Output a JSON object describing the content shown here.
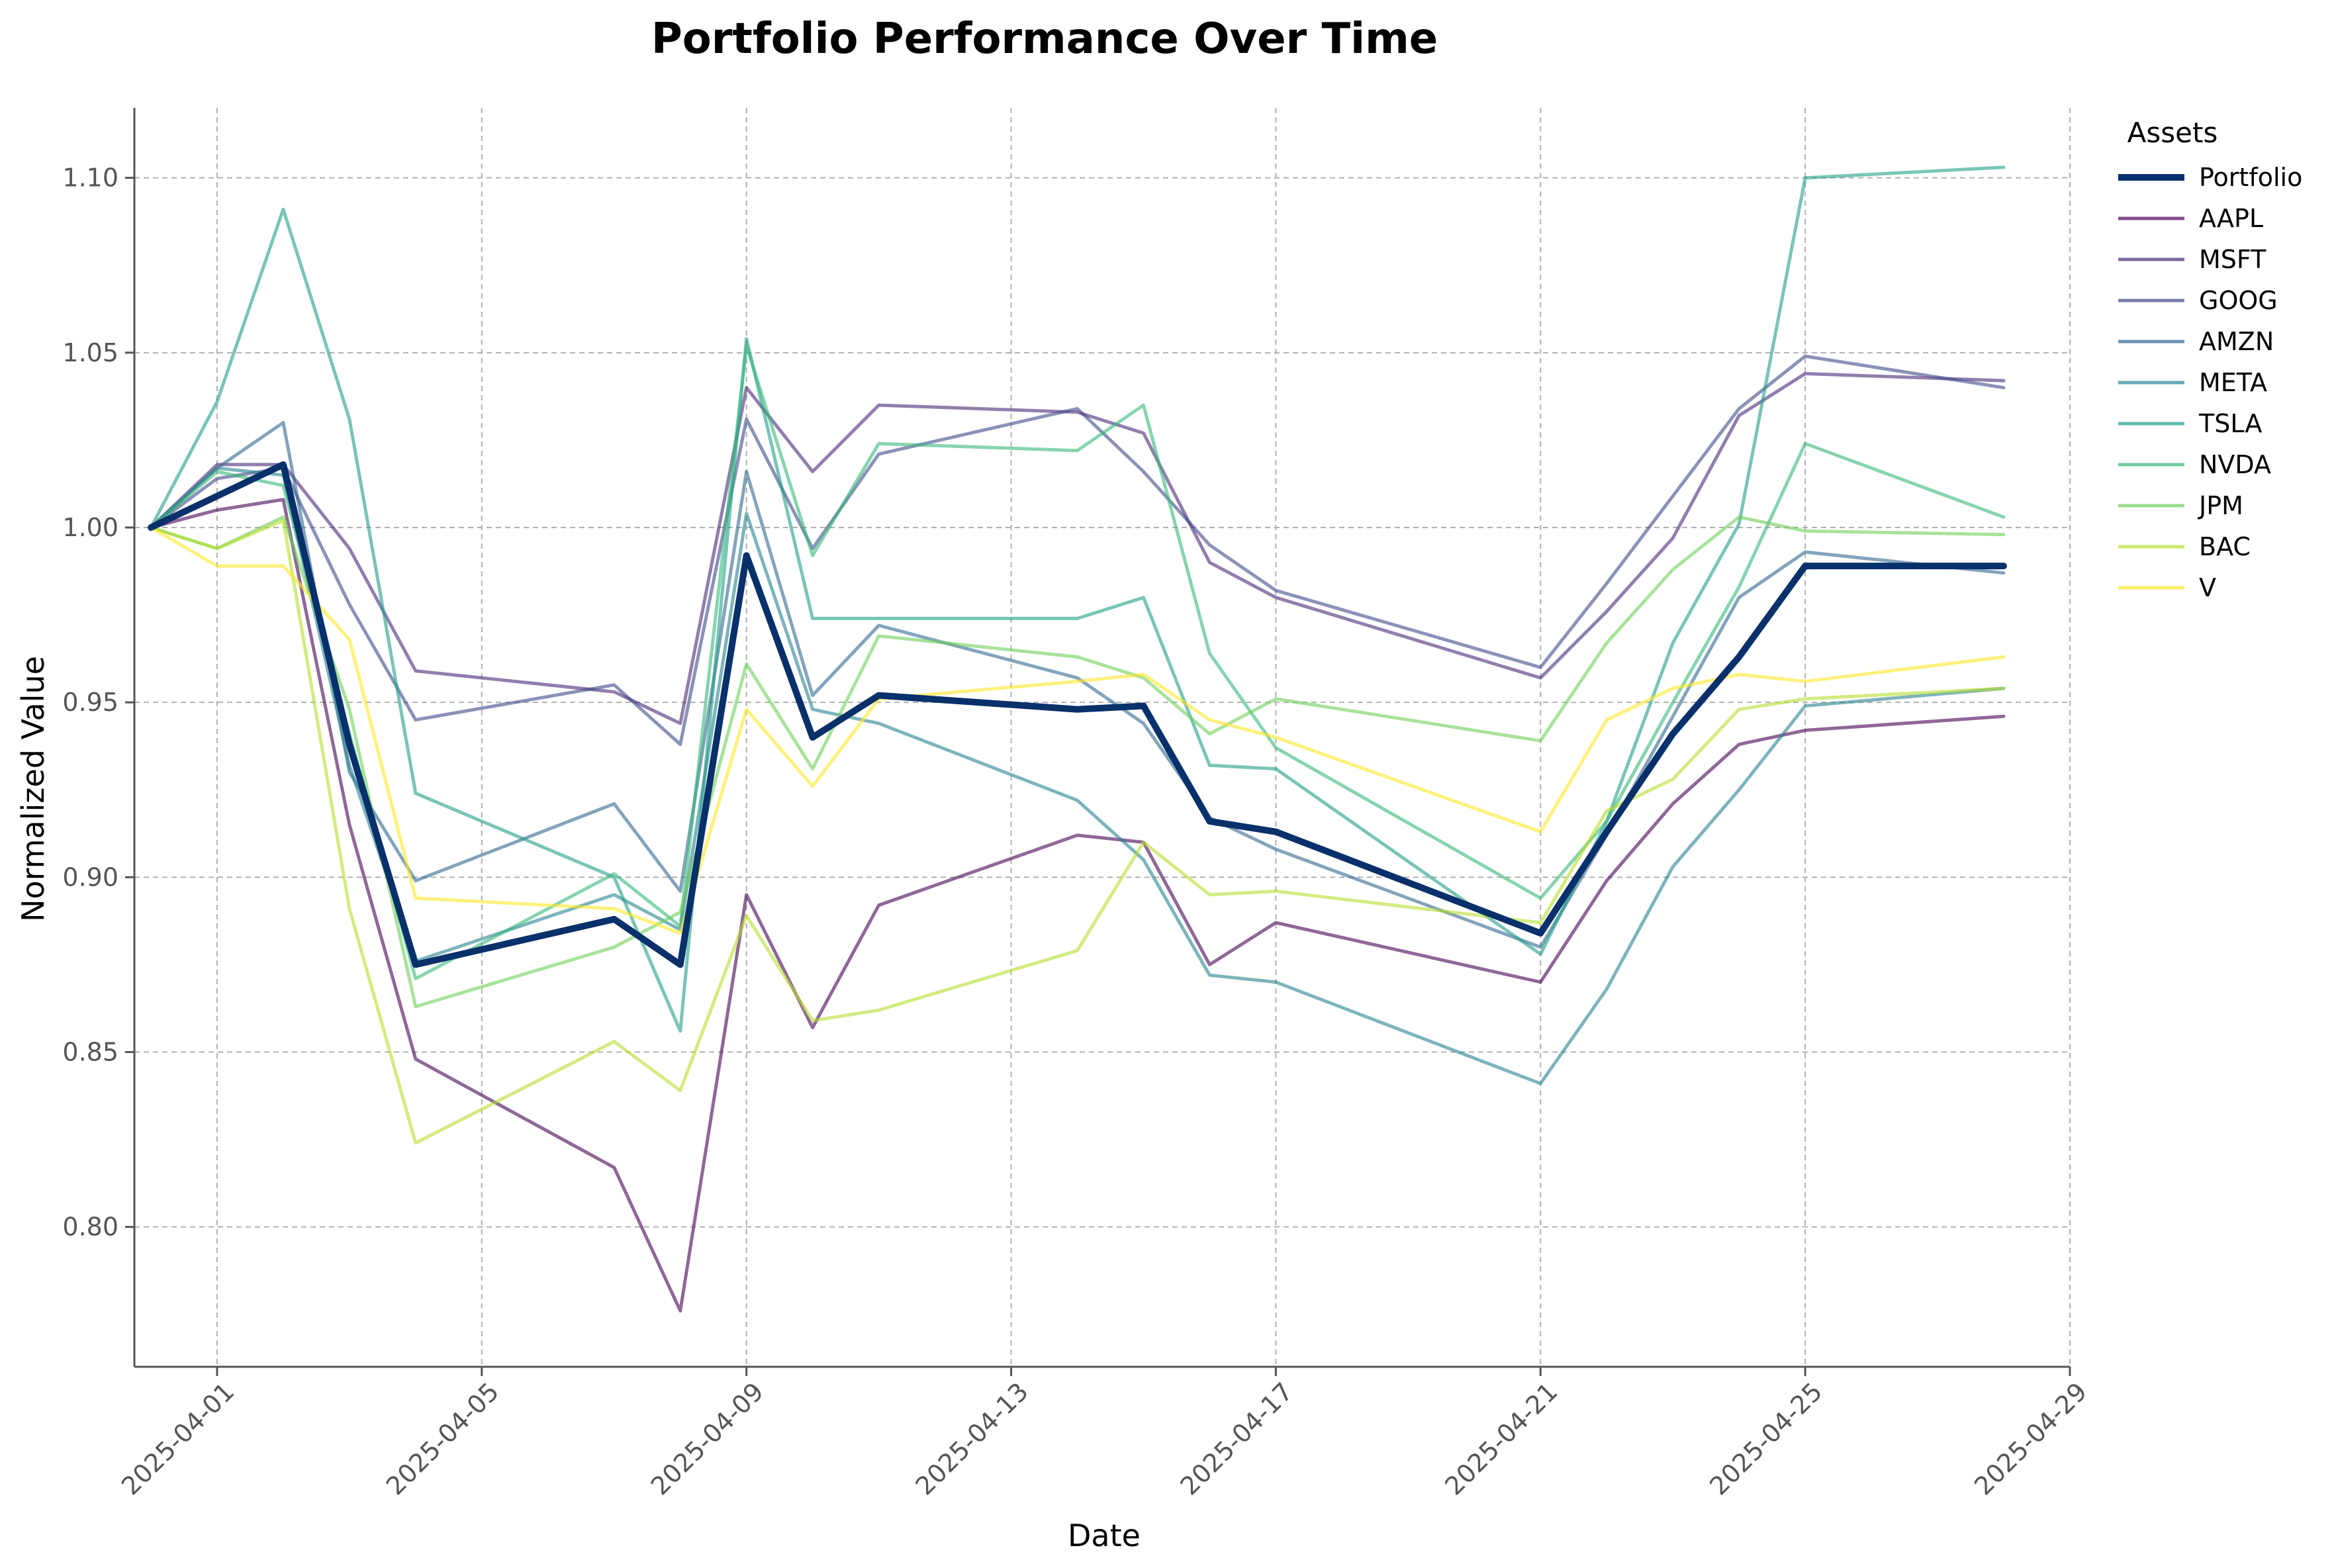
{
  "chart_data": {
    "type": "line",
    "title": "Portfolio Performance Over Time",
    "xlabel": "Date",
    "ylabel": "Normalized Value",
    "x": [
      "2025-03-31",
      "2025-04-01",
      "2025-04-02",
      "2025-04-03",
      "2025-04-04",
      "2025-04-07",
      "2025-04-08",
      "2025-04-09",
      "2025-04-10",
      "2025-04-11",
      "2025-04-14",
      "2025-04-15",
      "2025-04-16",
      "2025-04-17",
      "2025-04-21",
      "2025-04-22",
      "2025-04-23",
      "2025-04-24",
      "2025-04-25",
      "2025-04-28"
    ],
    "xlim": [
      "2025-03-30T18:00",
      "2025-04-29T00:00"
    ],
    "ylim": [
      0.76,
      1.12
    ],
    "xticks": [
      "2025-04-01",
      "2025-04-05",
      "2025-04-09",
      "2025-04-13",
      "2025-04-17",
      "2025-04-21",
      "2025-04-25",
      "2025-04-29"
    ],
    "yticks": [
      0.8,
      0.85,
      0.9,
      0.95,
      1.0,
      1.05,
      1.1
    ],
    "ytick_labels": [
      "0.80",
      "0.85",
      "0.90",
      "0.95",
      "1.00",
      "1.05",
      "1.10"
    ],
    "grid": true,
    "legend": {
      "title": "Assets",
      "placement": "outside-right"
    },
    "series": [
      {
        "name": "Portfolio",
        "color": "#08306b",
        "emphasis": true,
        "values": [
          1.0,
          1.009,
          1.018,
          0.938,
          0.875,
          0.888,
          0.875,
          0.992,
          0.94,
          0.952,
          0.948,
          0.949,
          0.916,
          0.913,
          0.884,
          0.913,
          0.941,
          0.963,
          0.989,
          0.989
        ]
      },
      {
        "name": "AAPL",
        "color": "#440154",
        "values": [
          1.0,
          1.005,
          1.008,
          0.915,
          0.848,
          0.817,
          0.776,
          0.895,
          0.857,
          0.892,
          0.912,
          0.91,
          0.875,
          0.887,
          0.87,
          0.899,
          0.921,
          0.938,
          0.942,
          0.946
        ]
      },
      {
        "name": "MSFT",
        "color": "#482878",
        "values": [
          1.0,
          1.018,
          1.018,
          0.994,
          0.959,
          0.953,
          0.944,
          1.04,
          1.016,
          1.035,
          1.033,
          1.027,
          0.99,
          0.98,
          0.957,
          0.976,
          0.997,
          1.032,
          1.044,
          1.042
        ]
      },
      {
        "name": "GOOG",
        "color": "#3e4989",
        "values": [
          1.0,
          1.014,
          1.017,
          0.978,
          0.945,
          0.955,
          0.938,
          1.031,
          0.994,
          1.021,
          1.034,
          1.016,
          0.995,
          0.982,
          0.96,
          0.984,
          1.009,
          1.034,
          1.049,
          1.04
        ]
      },
      {
        "name": "AMZN",
        "color": "#31688e",
        "values": [
          1.0,
          1.017,
          1.03,
          0.93,
          0.899,
          0.921,
          0.896,
          1.016,
          0.952,
          0.972,
          0.957,
          0.944,
          0.917,
          0.908,
          0.88,
          0.912,
          0.946,
          0.98,
          0.993,
          0.987
        ]
      },
      {
        "name": "META",
        "color": "#26828e",
        "values": [
          1.0,
          1.017,
          1.015,
          0.932,
          0.876,
          0.895,
          0.885,
          1.004,
          0.948,
          0.944,
          0.922,
          0.905,
          0.872,
          0.87,
          0.841,
          0.868,
          0.903,
          0.925,
          0.949,
          0.954
        ]
      },
      {
        "name": "TSLA",
        "color": "#1f9e89",
        "values": [
          1.0,
          1.036,
          1.091,
          1.031,
          0.924,
          0.9,
          0.856,
          1.054,
          0.974,
          0.974,
          0.974,
          0.98,
          0.932,
          0.931,
          0.878,
          0.916,
          0.967,
          1.001,
          1.1,
          1.103
        ]
      },
      {
        "name": "NVDA",
        "color": "#35b779",
        "values": [
          1.0,
          1.016,
          1.012,
          0.941,
          0.871,
          0.901,
          0.886,
          1.052,
          0.992,
          1.024,
          1.022,
          1.035,
          0.964,
          0.937,
          0.894,
          0.916,
          0.95,
          0.983,
          1.024,
          1.003
        ]
      },
      {
        "name": "JPM",
        "color": "#6ece58",
        "values": [
          1.0,
          0.994,
          1.003,
          0.948,
          0.863,
          0.88,
          0.89,
          0.961,
          0.931,
          0.969,
          0.963,
          0.957,
          0.941,
          0.951,
          0.939,
          0.967,
          0.988,
          1.003,
          0.999,
          0.998
        ]
      },
      {
        "name": "BAC",
        "color": "#b5de2b",
        "values": [
          1.0,
          0.994,
          1.002,
          0.891,
          0.824,
          0.853,
          0.839,
          0.889,
          0.859,
          0.862,
          0.879,
          0.91,
          0.895,
          0.896,
          0.887,
          0.919,
          0.928,
          0.948,
          0.951,
          0.954
        ]
      },
      {
        "name": "V",
        "color": "#fde725",
        "values": [
          1.0,
          0.989,
          0.989,
          0.968,
          0.894,
          0.891,
          0.884,
          0.948,
          0.926,
          0.951,
          0.956,
          0.958,
          0.945,
          0.94,
          0.913,
          0.945,
          0.954,
          0.958,
          0.956,
          0.963
        ]
      }
    ]
  }
}
